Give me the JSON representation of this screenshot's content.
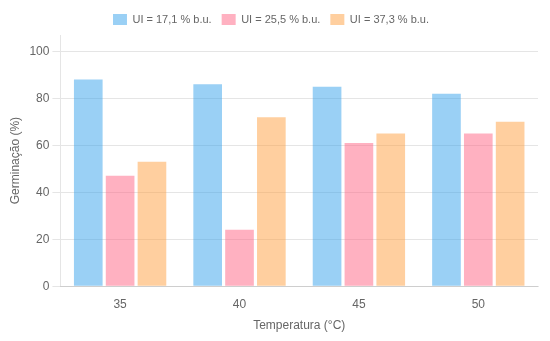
{
  "chart_data": {
    "type": "bar",
    "categories": [
      "35",
      "40",
      "45",
      "50"
    ],
    "series": [
      {
        "name": "UI = 17,1 % b.u.",
        "values": [
          88,
          86,
          85,
          82
        ]
      },
      {
        "name": "UI = 25,5 % b.u.",
        "values": [
          47,
          24,
          61,
          65
        ]
      },
      {
        "name": "UI = 37,3 % b.u.",
        "values": [
          53,
          72,
          65,
          70
        ]
      }
    ],
    "x_label": "Temperatura (°C)",
    "y_label": "Germinação (%)",
    "ylim": [
      0,
      107
    ],
    "yticks": [
      0,
      20,
      40,
      60,
      80,
      100
    ],
    "grid": true,
    "legend": "top"
  }
}
